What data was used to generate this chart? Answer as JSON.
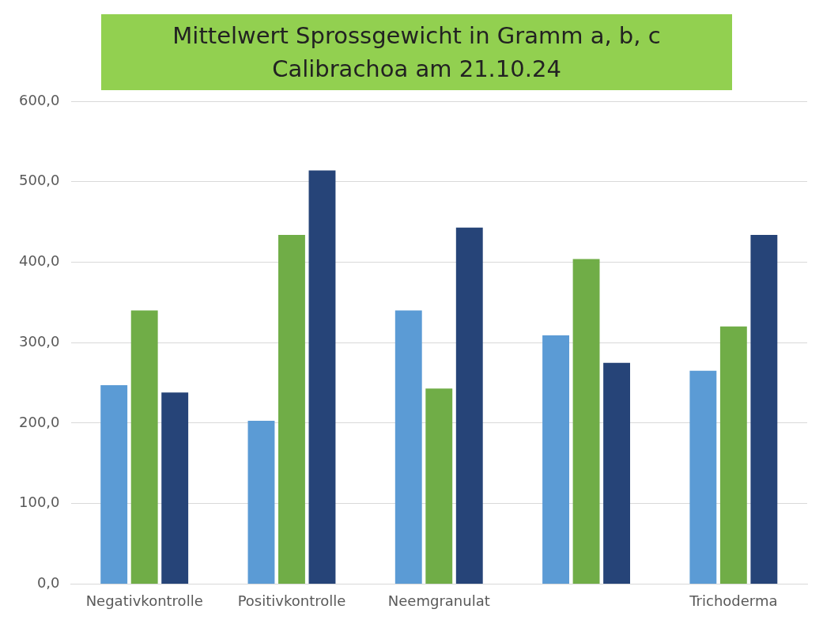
{
  "chart_data": {
    "type": "bar",
    "title": "Mittelwert Sprossgewicht in Gramm a, b, c Calibrachoa am 21.10.24",
    "categories": [
      "Negativkontrolle",
      "Positivkontrolle",
      "Neemgranulat",
      null,
      "Trichoderma"
    ],
    "series": [
      {
        "color": "#5b9bd5",
        "values": [
          247,
          203,
          340,
          309,
          265
        ]
      },
      {
        "color": "#70ad47",
        "values": [
          340,
          434,
          243,
          404,
          320
        ]
      },
      {
        "color": "#264478",
        "values": [
          238,
          514,
          443,
          275,
          434
        ]
      }
    ],
    "ylim": [
      0,
      600
    ],
    "yticks": [
      {
        "value": 0,
        "label": "0,0"
      },
      {
        "value": 100,
        "label": "100,0"
      },
      {
        "value": 200,
        "label": "200,0"
      },
      {
        "value": 300,
        "label": "300,0"
      },
      {
        "value": 400,
        "label": "400,0"
      },
      {
        "value": 500,
        "label": "500,0"
      },
      {
        "value": 600,
        "label": "600,0"
      }
    ],
    "grid": "y",
    "legend": false
  }
}
